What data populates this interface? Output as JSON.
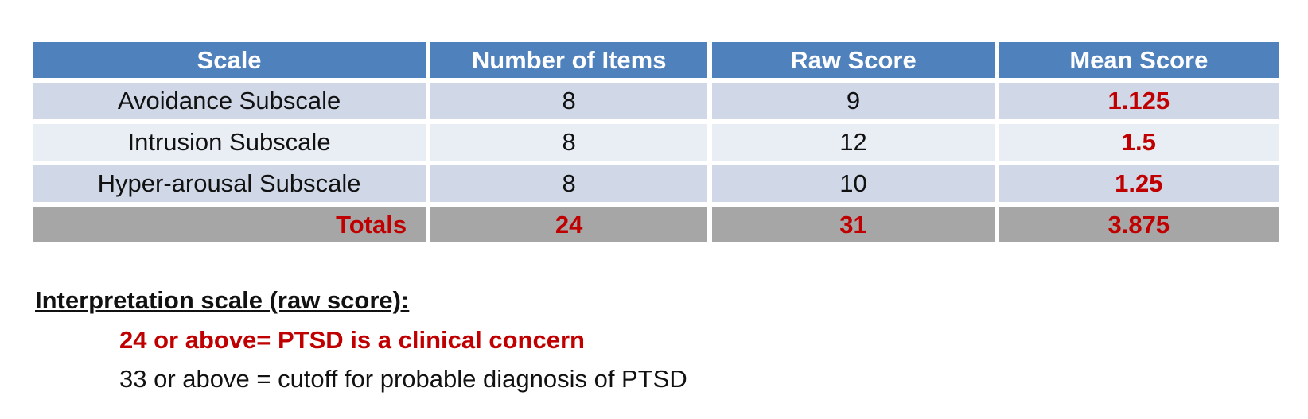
{
  "table": {
    "headers": [
      "Scale",
      "Number of Items",
      "Raw Score",
      "Mean Score"
    ],
    "rows": [
      {
        "scale": "Avoidance Subscale",
        "items": "8",
        "raw": "9",
        "mean": "1.125"
      },
      {
        "scale": "Intrusion Subscale",
        "items": "8",
        "raw": "12",
        "mean": "1.5"
      },
      {
        "scale": "Hyper-arousal Subscale",
        "items": "8",
        "raw": "10",
        "mean": "1.25"
      }
    ],
    "totals": {
      "label": "Totals",
      "items": "24",
      "raw": "31",
      "mean": "3.875"
    }
  },
  "interpretation": {
    "title": "Interpretation scale (raw score): ",
    "lines": [
      "24 or above= PTSD is a clinical concern",
      "33 or above = cutoff for probable diagnosis of PTSD"
    ]
  },
  "colors": {
    "header_bg": "#4f81bd",
    "row_dark": "#d0d8e8",
    "row_light": "#e9edf4",
    "totals_bg": "#a6a6a6",
    "highlight_red": "#c00000"
  }
}
